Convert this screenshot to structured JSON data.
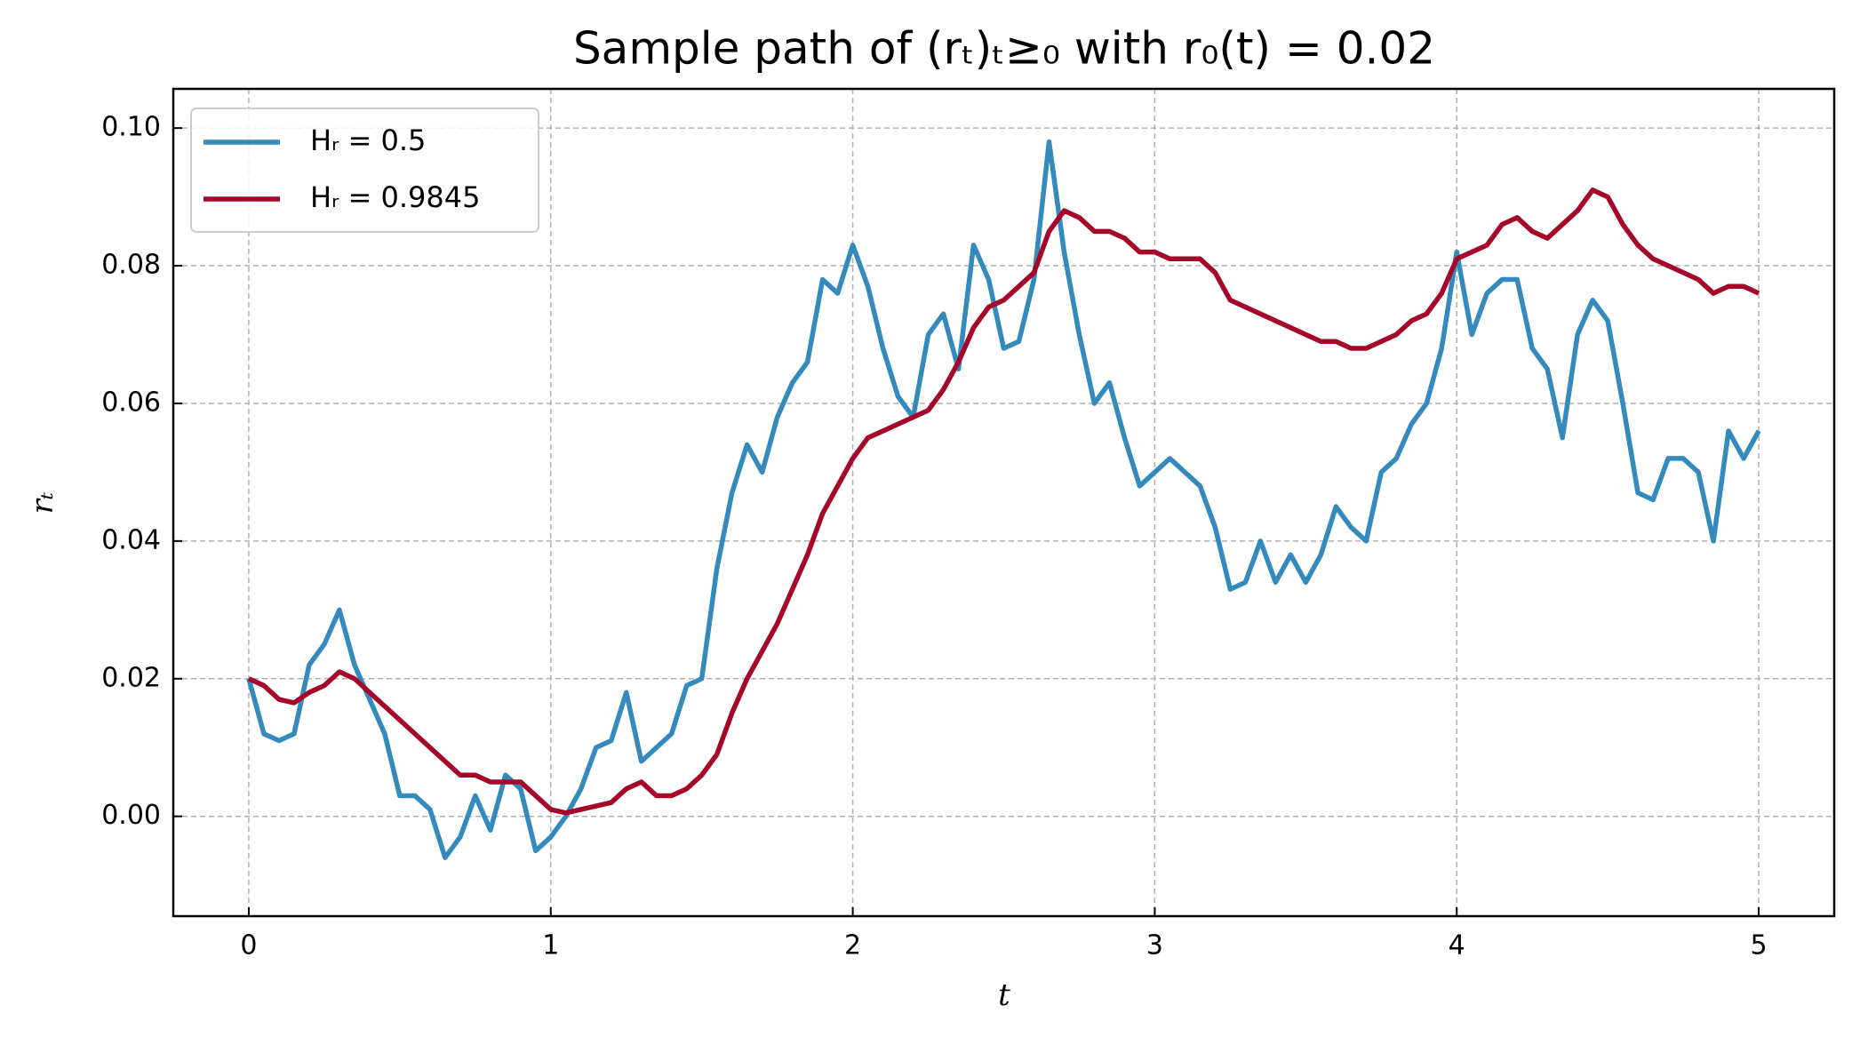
{
  "chart_data": {
    "type": "line",
    "title": "Sample path of (rₜ)ₜ≥₀ with r₀(t) = 0.02",
    "x_label": "t",
    "y_label": "rₜ",
    "x": [
      0,
      0.05,
      0.1,
      0.15,
      0.2,
      0.25,
      0.3,
      0.35,
      0.4,
      0.45,
      0.5,
      0.55,
      0.6,
      0.65,
      0.7,
      0.75,
      0.8,
      0.85,
      0.9,
      0.95,
      1,
      1.05,
      1.1,
      1.15,
      1.2,
      1.25,
      1.3,
      1.35,
      1.4,
      1.45,
      1.5,
      1.55,
      1.6,
      1.65,
      1.7,
      1.75,
      1.8,
      1.85,
      1.9,
      1.95,
      2,
      2.05,
      2.1,
      2.15,
      2.2,
      2.25,
      2.3,
      2.35,
      2.4,
      2.45,
      2.5,
      2.55,
      2.6,
      2.65,
      2.7,
      2.75,
      2.8,
      2.85,
      2.9,
      2.95,
      3,
      3.05,
      3.1,
      3.15,
      3.2,
      3.25,
      3.3,
      3.35,
      3.4,
      3.45,
      3.5,
      3.55,
      3.6,
      3.65,
      3.7,
      3.75,
      3.8,
      3.85,
      3.9,
      3.95,
      4,
      4.05,
      4.1,
      4.15,
      4.2,
      4.25,
      4.3,
      4.35,
      4.4,
      4.45,
      4.5,
      4.55,
      4.6,
      4.65,
      4.7,
      4.75,
      4.8,
      4.85,
      4.9,
      4.95,
      5
    ],
    "series": [
      {
        "name": "Hᵣ = 0.5",
        "color": "#348abd",
        "values": [
          0.02,
          0.012,
          0.011,
          0.012,
          0.022,
          0.025,
          0.03,
          0.022,
          0.017,
          0.012,
          0.003,
          0.003,
          0.001,
          -0.006,
          -0.003,
          0.003,
          -0.002,
          0.006,
          0.004,
          -0.005,
          -0.003,
          0.0,
          0.004,
          0.01,
          0.011,
          0.018,
          0.008,
          0.01,
          0.012,
          0.019,
          0.02,
          0.036,
          0.047,
          0.054,
          0.05,
          0.058,
          0.063,
          0.066,
          0.078,
          0.076,
          0.083,
          0.077,
          0.068,
          0.061,
          0.058,
          0.07,
          0.073,
          0.065,
          0.083,
          0.078,
          0.068,
          0.069,
          0.078,
          0.098,
          0.082,
          0.07,
          0.06,
          0.063,
          0.055,
          0.048,
          0.05,
          0.052,
          0.05,
          0.048,
          0.042,
          0.033,
          0.034,
          0.04,
          0.034,
          0.038,
          0.034,
          0.038,
          0.045,
          0.042,
          0.04,
          0.05,
          0.052,
          0.057,
          0.06,
          0.068,
          0.082,
          0.07,
          0.076,
          0.078,
          0.078,
          0.068,
          0.065,
          0.055,
          0.07,
          0.075,
          0.072,
          0.06,
          0.047,
          0.046,
          0.052,
          0.052,
          0.05,
          0.04,
          0.056,
          0.052,
          0.056
        ]
      },
      {
        "name": "Hᵣ = 0.9845",
        "color": "#a60628",
        "values": [
          0.02,
          0.019,
          0.017,
          0.0165,
          0.018,
          0.019,
          0.021,
          0.02,
          0.018,
          0.016,
          0.014,
          0.012,
          0.01,
          0.008,
          0.006,
          0.006,
          0.005,
          0.005,
          0.005,
          0.003,
          0.001,
          0.0005,
          0.001,
          0.0015,
          0.002,
          0.004,
          0.005,
          0.003,
          0.003,
          0.004,
          0.006,
          0.009,
          0.015,
          0.02,
          0.024,
          0.028,
          0.033,
          0.038,
          0.044,
          0.048,
          0.052,
          0.055,
          0.056,
          0.057,
          0.058,
          0.059,
          0.062,
          0.066,
          0.071,
          0.074,
          0.075,
          0.077,
          0.079,
          0.085,
          0.088,
          0.087,
          0.085,
          0.085,
          0.084,
          0.082,
          0.082,
          0.081,
          0.081,
          0.081,
          0.079,
          0.075,
          0.074,
          0.073,
          0.072,
          0.071,
          0.07,
          0.069,
          0.069,
          0.068,
          0.068,
          0.069,
          0.07,
          0.072,
          0.073,
          0.076,
          0.081,
          0.082,
          0.083,
          0.086,
          0.087,
          0.085,
          0.084,
          0.086,
          0.088,
          0.091,
          0.09,
          0.086,
          0.083,
          0.081,
          0.08,
          0.079,
          0.078,
          0.076,
          0.077,
          0.077,
          0.076
        ]
      }
    ],
    "xlim": [
      -0.25,
      5.25
    ],
    "ylim": [
      -0.0145,
      0.1057
    ],
    "xticks": [
      0,
      1,
      2,
      3,
      4,
      5
    ],
    "yticks": [
      {
        "value": 0,
        "label": "0.00"
      },
      0.02,
      0.04,
      0.06,
      0.08,
      {
        "value": 0.1,
        "label": "0.10"
      }
    ],
    "grid": true,
    "legend": "upper left"
  }
}
